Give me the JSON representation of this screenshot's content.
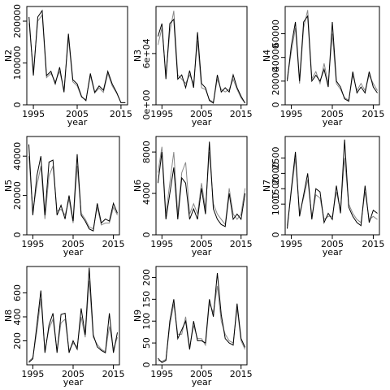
{
  "chart_data": [
    {
      "type": "line",
      "ylabel": "N2",
      "xlabel": "year",
      "xlim": [
        1993.5,
        2016.5
      ],
      "ylim": [
        0,
        235000
      ],
      "xticks": [
        1995,
        2005,
        2015
      ],
      "yticks": [
        0,
        100000,
        200000
      ],
      "ytick_labels": [
        "0",
        "100000",
        "200000"
      ],
      "x": [
        1994,
        1995,
        1996,
        1997,
        1998,
        1999,
        2000,
        2001,
        2002,
        2003,
        2004,
        2005,
        2006,
        2007,
        2008,
        2009,
        2010,
        2011,
        2012,
        2013,
        2014,
        2015,
        2016
      ],
      "series": [
        {
          "color": "#000000",
          "values": [
            210000,
            70000,
            210000,
            225000,
            70000,
            80000,
            50000,
            90000,
            30000,
            170000,
            60000,
            50000,
            20000,
            10000,
            75000,
            30000,
            45000,
            35000,
            80000,
            50000,
            30000,
            5000,
            5000
          ]
        },
        {
          "color": "#888888",
          "values": [
            195000,
            80000,
            200000,
            215000,
            65000,
            75000,
            55000,
            80000,
            35000,
            160000,
            55000,
            45000,
            18000,
            12000,
            70000,
            28000,
            40000,
            30000,
            75000,
            45000,
            28000,
            5000,
            5000
          ]
        }
      ]
    },
    {
      "type": "line",
      "ylabel": "N3",
      "xlabel": "year",
      "xlim": [
        1993.5,
        2016.5
      ],
      "ylim": [
        0,
        115000
      ],
      "xticks": [
        1995,
        2005,
        2015
      ],
      "yticks": [
        0,
        60000
      ],
      "ytick_labels": [
        "0e+00",
        "6e+04"
      ],
      "x": [
        1994,
        1995,
        1996,
        1997,
        1998,
        1999,
        2000,
        2001,
        2002,
        2003,
        2004,
        2005,
        2006,
        2007,
        2008,
        2009,
        2010,
        2011,
        2012,
        2013,
        2014,
        2015,
        2016
      ],
      "series": [
        {
          "color": "#000000",
          "values": [
            80000,
            95000,
            30000,
            95000,
            100000,
            30000,
            35000,
            20000,
            40000,
            20000,
            85000,
            25000,
            20000,
            5000,
            2000,
            35000,
            15000,
            20000,
            15000,
            35000,
            20000,
            10000,
            2000
          ]
        },
        {
          "color": "#888888",
          "values": [
            70000,
            90000,
            35000,
            85000,
            110000,
            35000,
            30000,
            25000,
            35000,
            25000,
            75000,
            20000,
            18000,
            6000,
            3000,
            30000,
            18000,
            15000,
            18000,
            30000,
            18000,
            8000,
            2000
          ]
        }
      ]
    },
    {
      "type": "line",
      "ylabel": "N4",
      "xlabel": "year",
      "xlim": [
        1993.5,
        2016.5
      ],
      "ylim": [
        0,
        83000
      ],
      "xticks": [
        1995,
        2005,
        2015
      ],
      "yticks": [
        0,
        20000,
        40000,
        60000
      ],
      "ytick_labels": [
        "0",
        "20000",
        "40000",
        "60000"
      ],
      "x": [
        1994,
        1995,
        1996,
        1997,
        1998,
        1999,
        2000,
        2001,
        2002,
        2003,
        2004,
        2005,
        2006,
        2007,
        2008,
        2009,
        2010,
        2011,
        2012,
        2013,
        2014,
        2015,
        2016
      ],
      "series": [
        {
          "color": "#000000",
          "values": [
            20000,
            50000,
            70000,
            20000,
            70000,
            75000,
            20000,
            25000,
            20000,
            30000,
            15000,
            70000,
            20000,
            15000,
            5000,
            3000,
            28000,
            10000,
            15000,
            10000,
            28000,
            15000,
            10000
          ]
        },
        {
          "color": "#888888",
          "values": [
            22000,
            45000,
            65000,
            18000,
            65000,
            80000,
            22000,
            28000,
            18000,
            35000,
            18000,
            60000,
            18000,
            13000,
            6000,
            4000,
            25000,
            12000,
            18000,
            12000,
            25000,
            18000,
            12000
          ]
        }
      ]
    },
    {
      "type": "line",
      "ylabel": "N5",
      "xlabel": "year",
      "xlim": [
        1993.5,
        2016.5
      ],
      "ylim": [
        0,
        50000
      ],
      "xticks": [
        1995,
        2005,
        2015
      ],
      "yticks": [
        0,
        20000,
        40000
      ],
      "ytick_labels": [
        "0",
        "20000",
        "40000"
      ],
      "x": [
        1994,
        1995,
        1996,
        1997,
        1998,
        1999,
        2000,
        2001,
        2002,
        2003,
        2004,
        2005,
        2006,
        2007,
        2008,
        2009,
        2010,
        2011,
        2012,
        2013,
        2014,
        2015,
        2016
      ],
      "series": [
        {
          "color": "#000000",
          "values": [
            46000,
            10000,
            30000,
            40000,
            10000,
            37000,
            38000,
            10000,
            15000,
            8000,
            20000,
            7000,
            41000,
            10000,
            7000,
            3000,
            2000,
            16000,
            6000,
            8000,
            7000,
            16000,
            11000
          ]
        },
        {
          "color": "#888888",
          "values": [
            40000,
            12000,
            25000,
            35000,
            8000,
            30000,
            35000,
            12000,
            13000,
            10000,
            18000,
            6000,
            35000,
            11000,
            8000,
            4000,
            3000,
            14000,
            5000,
            6000,
            6000,
            14000,
            10000
          ]
        }
      ]
    },
    {
      "type": "line",
      "ylabel": "N6",
      "xlabel": "year",
      "xlim": [
        1993.5,
        2016.5
      ],
      "ylim": [
        0,
        9500
      ],
      "xticks": [
        1995,
        2005,
        2015
      ],
      "yticks": [
        0,
        4000,
        8000
      ],
      "ytick_labels": [
        "0",
        "4000",
        "8000"
      ],
      "x": [
        1994,
        1995,
        1996,
        1997,
        1998,
        1999,
        2000,
        2001,
        2002,
        2003,
        2004,
        2005,
        2006,
        2007,
        2008,
        2009,
        2010,
        2011,
        2012,
        2013,
        2014,
        2015,
        2016
      ],
      "series": [
        {
          "color": "#000000",
          "values": [
            5000,
            8000,
            1500,
            4000,
            6500,
            1500,
            5500,
            5000,
            1500,
            2500,
            1500,
            4500,
            2000,
            9000,
            2500,
            1500,
            1000,
            800,
            4000,
            1500,
            2000,
            1500,
            4000
          ]
        },
        {
          "color": "#888888",
          "values": [
            6000,
            8500,
            2000,
            5000,
            8000,
            2000,
            6000,
            7000,
            2000,
            3000,
            2000,
            5000,
            2500,
            8000,
            3000,
            2000,
            1500,
            1000,
            4500,
            2000,
            1500,
            2000,
            4500
          ]
        }
      ]
    },
    {
      "type": "line",
      "ylabel": "N7",
      "xlabel": "year",
      "xlim": [
        1993.5,
        2016.5
      ],
      "ylim": [
        0,
        3200
      ],
      "xticks": [
        1995,
        2005,
        2015
      ],
      "yticks": [
        0,
        1000,
        1500,
        2000,
        2500
      ],
      "ytick_labels": [
        "0",
        "1000",
        "1500",
        "2000",
        "2500"
      ],
      "x": [
        1994,
        1995,
        1996,
        1997,
        1998,
        1999,
        2000,
        2001,
        2002,
        2003,
        2004,
        2005,
        2006,
        2007,
        2008,
        2009,
        2010,
        2011,
        2012,
        2013,
        2014,
        2015,
        2016
      ],
      "series": [
        {
          "color": "#000000",
          "values": [
            200,
            1500,
            2700,
            600,
            1300,
            2000,
            500,
            1500,
            1400,
            400,
            700,
            500,
            1600,
            700,
            3100,
            900,
            600,
            400,
            300,
            1600,
            400,
            800,
            700
          ]
        },
        {
          "color": "#888888",
          "values": [
            300,
            1400,
            2500,
            700,
            1200,
            1800,
            600,
            1300,
            1200,
            500,
            600,
            600,
            1400,
            800,
            2500,
            1000,
            700,
            500,
            400,
            1400,
            500,
            600,
            500
          ]
        }
      ]
    },
    {
      "type": "line",
      "ylabel": "N8",
      "xlabel": "year",
      "xlim": [
        1993.5,
        2016.5
      ],
      "ylim": [
        0,
        820
      ],
      "xticks": [
        1995,
        2005,
        2015
      ],
      "yticks": [
        200,
        400,
        600
      ],
      "ytick_labels": [
        "200",
        "400",
        "600"
      ],
      "x": [
        1994,
        1995,
        1996,
        1997,
        1998,
        1999,
        2000,
        2001,
        2002,
        2003,
        2004,
        2005,
        2006,
        2007,
        2008,
        2009,
        2010,
        2011,
        2012,
        2013,
        2014,
        2015,
        2016
      ],
      "series": [
        {
          "color": "#000000",
          "values": [
            20,
            50,
            330,
            620,
            100,
            330,
            430,
            100,
            420,
            430,
            100,
            200,
            130,
            470,
            250,
            810,
            250,
            150,
            120,
            100,
            430,
            100,
            270
          ]
        },
        {
          "color": "#888888",
          "values": [
            30,
            60,
            280,
            550,
            120,
            300,
            380,
            120,
            350,
            380,
            120,
            180,
            150,
            400,
            230,
            700,
            230,
            170,
            130,
            110,
            320,
            130,
            230
          ]
        }
      ]
    },
    {
      "type": "line",
      "ylabel": "N9",
      "xlabel": "year",
      "xlim": [
        1993.5,
        2016.5
      ],
      "ylim": [
        0,
        225
      ],
      "xticks": [
        1995,
        2005,
        2015
      ],
      "yticks": [
        0,
        50,
        100,
        150,
        200
      ],
      "ytick_labels": [
        "0",
        "50",
        "100",
        "150",
        "200"
      ],
      "x": [
        1994,
        1995,
        1996,
        1997,
        1998,
        1999,
        2000,
        2001,
        2002,
        2003,
        2004,
        2005,
        2006,
        2007,
        2008,
        2009,
        2010,
        2011,
        2012,
        2013,
        2014,
        2015,
        2016
      ],
      "series": [
        {
          "color": "#000000",
          "values": [
            15,
            5,
            10,
            100,
            150,
            60,
            80,
            100,
            35,
            100,
            55,
            55,
            50,
            150,
            110,
            210,
            115,
            60,
            50,
            45,
            140,
            60,
            40
          ]
        },
        {
          "color": "#888888",
          "values": [
            10,
            8,
            12,
            90,
            140,
            70,
            70,
            110,
            40,
            90,
            60,
            60,
            45,
            140,
            120,
            180,
            100,
            70,
            55,
            50,
            130,
            55,
            35
          ]
        }
      ]
    }
  ]
}
